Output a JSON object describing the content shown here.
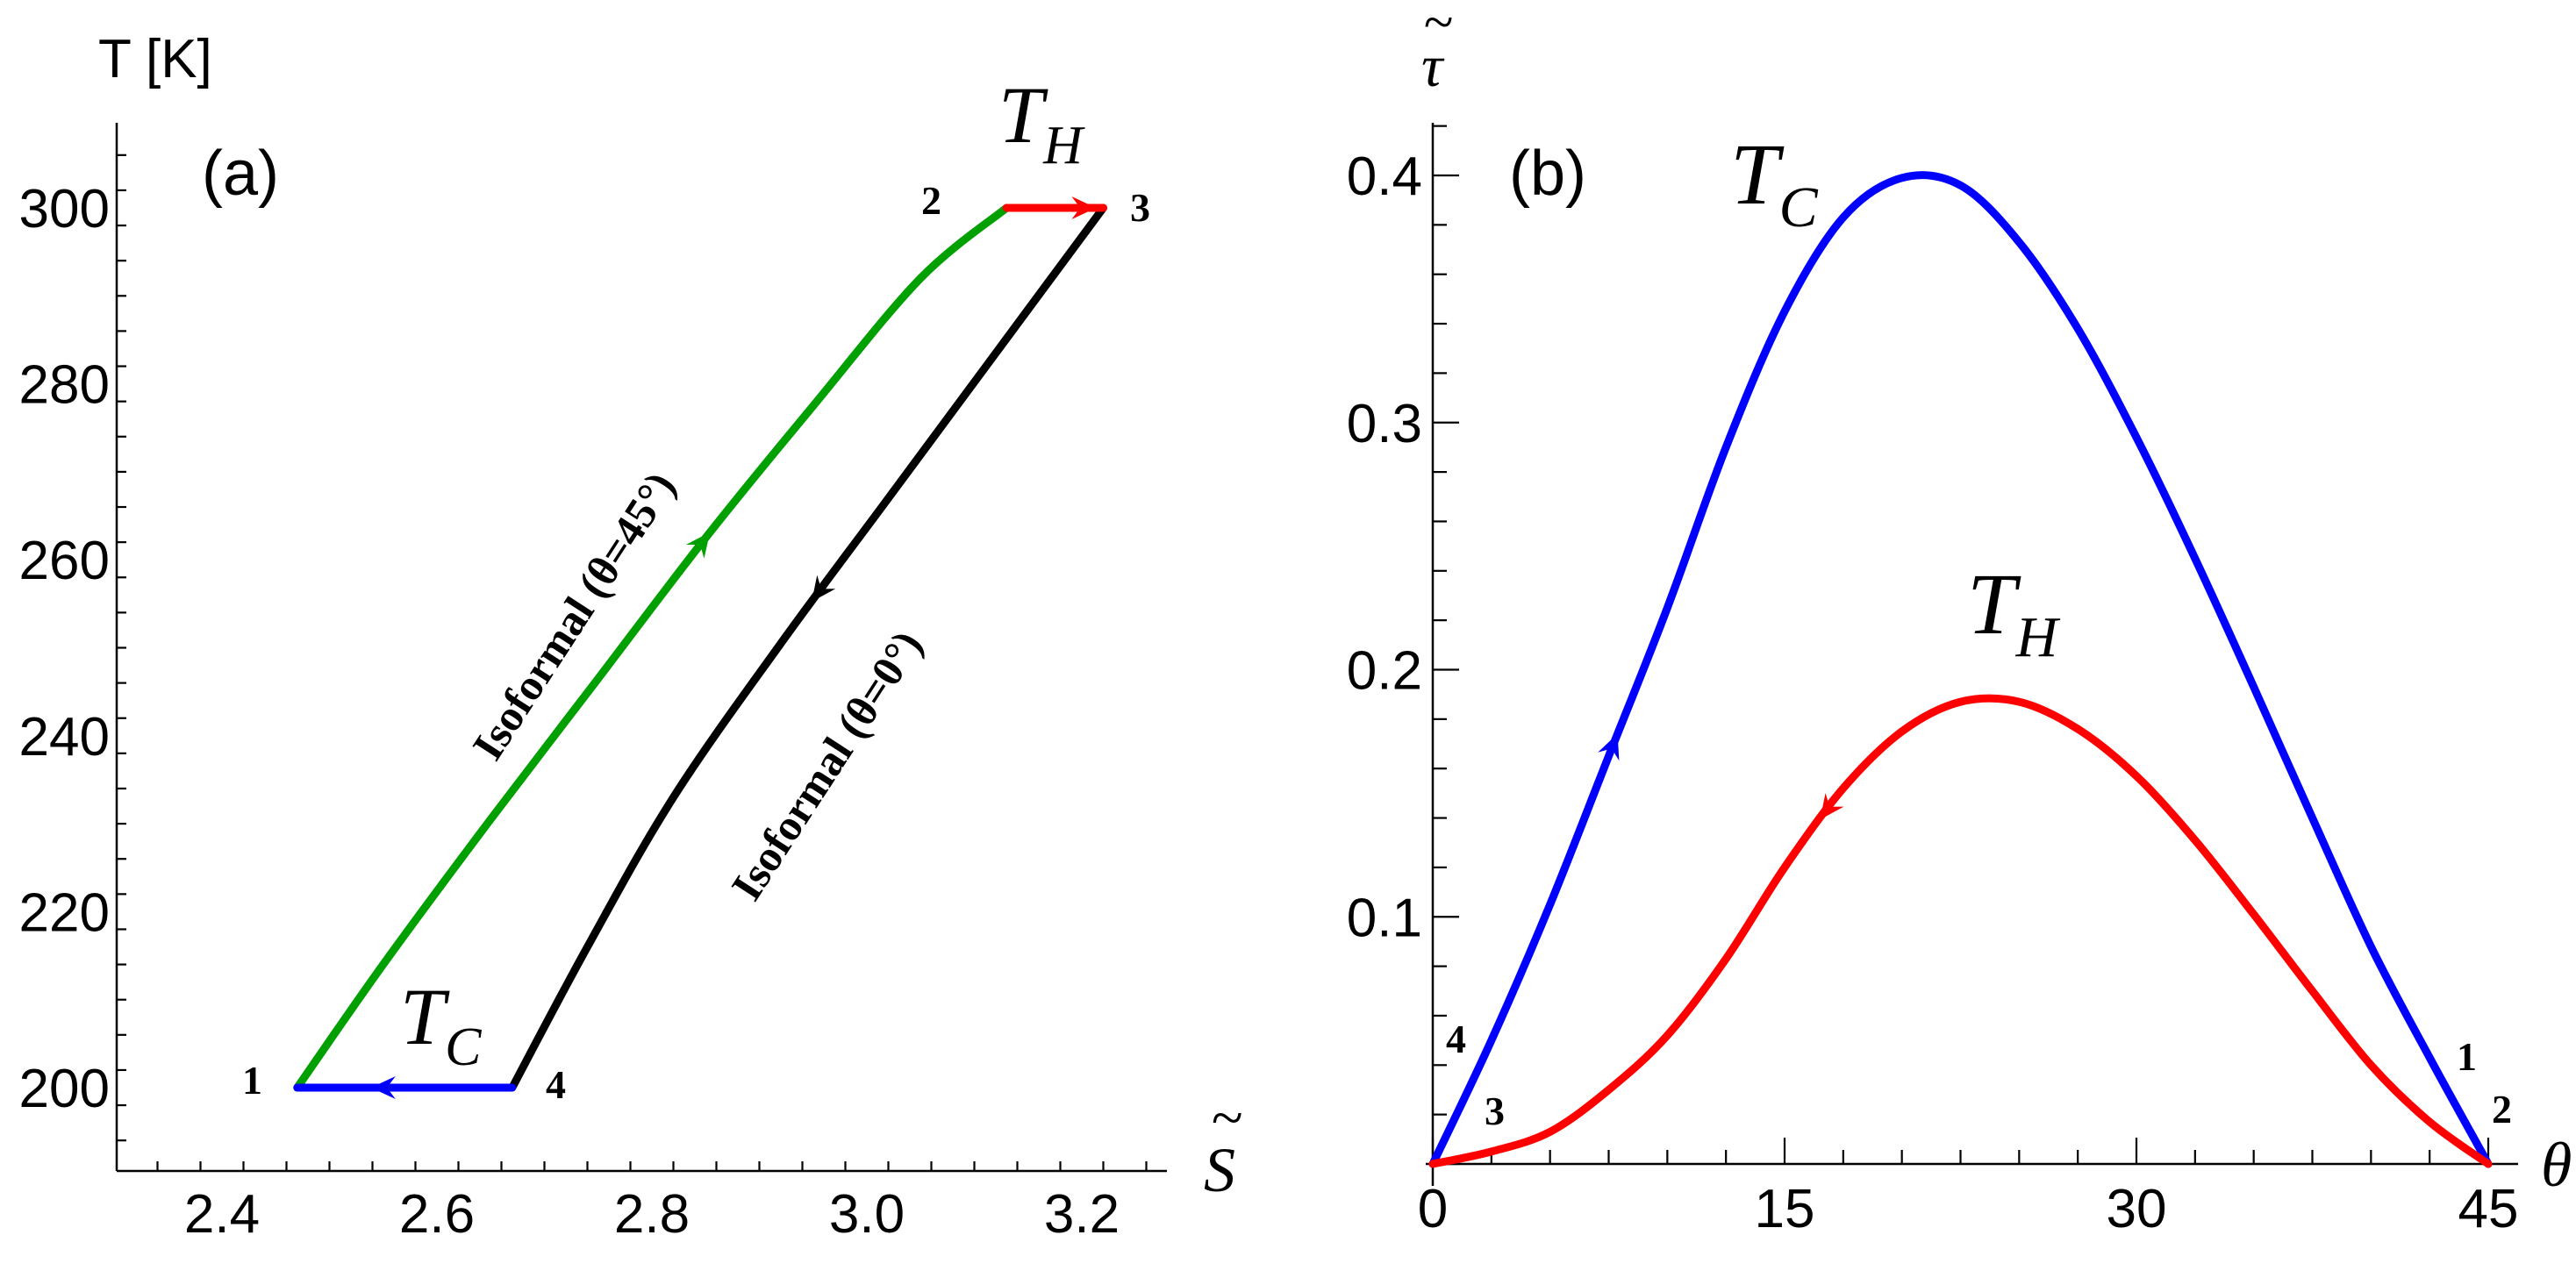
{
  "chart_data": [
    {
      "panel": "(a)",
      "type": "line",
      "ylabel": "T [K]",
      "xlabel_symbol": "S",
      "xlabel_accent": "~",
      "xlim": [
        2.3,
        3.3
      ],
      "ylim": [
        190,
        310
      ],
      "xticks": [
        2.4,
        2.6,
        2.8,
        3.0,
        3.2
      ],
      "xtick_labels": [
        "2.4",
        "2.6",
        "2.8",
        "3.0",
        "3.2"
      ],
      "yticks": [
        200,
        220,
        240,
        260,
        280,
        300
      ],
      "ytick_labels": [
        "200",
        "220",
        "240",
        "260",
        "280",
        "300"
      ],
      "series": [
        {
          "label": "Isoformal (θ=45°)",
          "color": "#00a000",
          "x": [
            2.47,
            2.55,
            2.65,
            2.75,
            2.85,
            2.95,
            3.05,
            3.13
          ],
          "y": [
            200,
            214,
            230.5,
            246.5,
            262.5,
            277.5,
            292,
            300
          ]
        },
        {
          "label": "Isoformal (θ=0°)",
          "color": "#000000",
          "x": [
            3.22,
            3.12,
            3.02,
            2.92,
            2.82,
            2.74,
            2.67
          ],
          "y": [
            300,
            283.5,
            267,
            250.5,
            233,
            216,
            200
          ]
        },
        {
          "label": "T_H",
          "color": "#ff0000",
          "x": [
            3.13,
            3.22
          ],
          "y": [
            300,
            300
          ]
        },
        {
          "label": "T_C",
          "color": "#0000ff",
          "x": [
            2.67,
            2.47
          ],
          "y": [
            200,
            200
          ]
        }
      ],
      "point_labels": [
        {
          "text": "1",
          "x": 2.47,
          "y": 200
        },
        {
          "text": "2",
          "x": 3.13,
          "y": 300
        },
        {
          "text": "3",
          "x": 3.22,
          "y": 300
        },
        {
          "text": "4",
          "x": 2.67,
          "y": 200
        }
      ],
      "annotations": {
        "th_base": "T",
        "th_sub": "H",
        "tc_base": "T",
        "tc_sub": "C",
        "iso45": "Isoformal (θ=45°)",
        "iso0": "Isoformal (θ=0°)"
      }
    },
    {
      "panel": "(b)",
      "type": "line",
      "ylabel_symbol": "τ",
      "ylabel_accent": "~",
      "xlabel_symbol": "θ",
      "xlim": [
        0,
        45
      ],
      "ylim": [
        0,
        0.4
      ],
      "xticks": [
        0,
        15,
        30,
        45
      ],
      "xtick_labels": [
        "0",
        "15",
        "30",
        "45"
      ],
      "yticks": [
        0.1,
        0.2,
        0.3,
        0.4
      ],
      "ytick_labels": [
        "0.1",
        "0.2",
        "0.3",
        "0.4"
      ],
      "series": [
        {
          "label": "T_C",
          "color": "#0000ff",
          "x": [
            0,
            2.5,
            5,
            7.5,
            10,
            12.5,
            15,
            17.5,
            20,
            22.5,
            25,
            27.5,
            30,
            32.5,
            35,
            37.5,
            40,
            42.5,
            45
          ],
          "y": [
            0,
            0.05,
            0.105,
            0.165,
            0.225,
            0.29,
            0.345,
            0.383,
            0.399,
            0.396,
            0.373,
            0.338,
            0.294,
            0.245,
            0.193,
            0.14,
            0.088,
            0.043,
            0
          ]
        },
        {
          "label": "T_H",
          "color": "#ff0000",
          "x": [
            0,
            2.5,
            5,
            7.5,
            10,
            12.5,
            15,
            17.5,
            20,
            22.5,
            25,
            27.5,
            30,
            32.5,
            35,
            37.5,
            40,
            42.5,
            45
          ],
          "y": [
            0,
            0.005,
            0.013,
            0.03,
            0.052,
            0.083,
            0.12,
            0.152,
            0.175,
            0.187,
            0.187,
            0.176,
            0.157,
            0.131,
            0.101,
            0.07,
            0.04,
            0.017,
            0
          ]
        }
      ],
      "point_labels": [
        {
          "text": "1",
          "x": 45,
          "y": 0
        },
        {
          "text": "2",
          "x": 45,
          "y": 0
        },
        {
          "text": "3",
          "x": 0,
          "y": 0
        },
        {
          "text": "4",
          "x": 0,
          "y": 0
        }
      ],
      "annotations": {
        "tc_base": "T",
        "tc_sub": "C",
        "th_base": "T",
        "th_sub": "H"
      }
    }
  ]
}
